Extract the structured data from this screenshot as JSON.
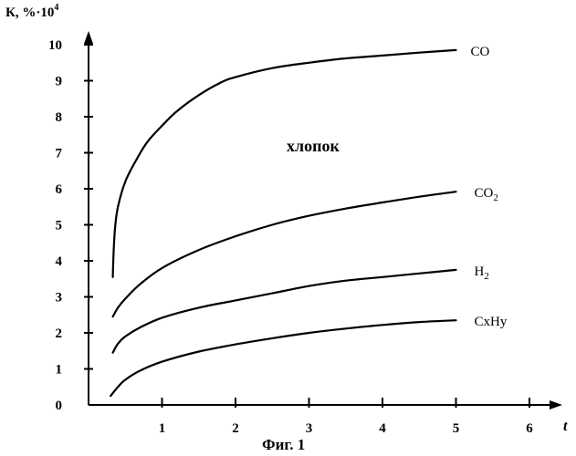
{
  "chart_data": {
    "type": "line",
    "title": "",
    "ylabel": "К, %·10",
    "ylabel_superscript": "4",
    "xlabel": "t",
    "caption": "Фиг. 1",
    "annotation": "хлопок",
    "xlim": [
      0,
      6
    ],
    "ylim": [
      0,
      10
    ],
    "x_ticks": [
      "1",
      "2",
      "3",
      "4",
      "5",
      "6"
    ],
    "y_ticks": [
      "0",
      "1",
      "2",
      "3",
      "4",
      "5",
      "6",
      "7",
      "8",
      "9",
      "10"
    ],
    "grid": false,
    "legend": "inline-right",
    "series": [
      {
        "name": "CO",
        "label_main": "CO",
        "label_sub": "",
        "x": [
          0.33,
          0.34,
          0.36,
          0.4,
          0.5,
          0.65,
          0.8,
          1.0,
          1.2,
          1.5,
          1.8,
          2.0,
          2.5,
          3.0,
          3.5,
          4.0,
          4.5,
          5.0
        ],
        "y": [
          3.55,
          4.2,
          4.9,
          5.5,
          6.2,
          6.8,
          7.3,
          7.75,
          8.15,
          8.6,
          8.95,
          9.1,
          9.35,
          9.5,
          9.62,
          9.7,
          9.78,
          9.85
        ]
      },
      {
        "name": "CO2",
        "label_main": "CO",
        "label_sub": "2",
        "x": [
          0.33,
          0.4,
          0.5,
          0.7,
          1.0,
          1.5,
          2.0,
          2.5,
          3.0,
          3.5,
          4.0,
          4.5,
          5.0
        ],
        "y": [
          2.45,
          2.7,
          2.95,
          3.35,
          3.8,
          4.3,
          4.68,
          5.0,
          5.25,
          5.45,
          5.62,
          5.78,
          5.92
        ]
      },
      {
        "name": "H2",
        "label_main": "H",
        "label_sub": "2",
        "x": [
          0.33,
          0.4,
          0.5,
          0.7,
          1.0,
          1.5,
          2.0,
          2.5,
          3.0,
          3.5,
          4.0,
          4.5,
          5.0
        ],
        "y": [
          1.45,
          1.7,
          1.9,
          2.15,
          2.42,
          2.7,
          2.9,
          3.1,
          3.3,
          3.45,
          3.55,
          3.65,
          3.75
        ]
      },
      {
        "name": "CxHy",
        "label_main": "CxHy",
        "label_sub": "",
        "x": [
          0.3,
          0.4,
          0.5,
          0.7,
          1.0,
          1.5,
          2.0,
          2.5,
          3.0,
          3.5,
          4.0,
          4.5,
          5.0
        ],
        "y": [
          0.25,
          0.5,
          0.7,
          0.95,
          1.2,
          1.48,
          1.68,
          1.85,
          2.0,
          2.12,
          2.22,
          2.3,
          2.35
        ]
      }
    ]
  }
}
